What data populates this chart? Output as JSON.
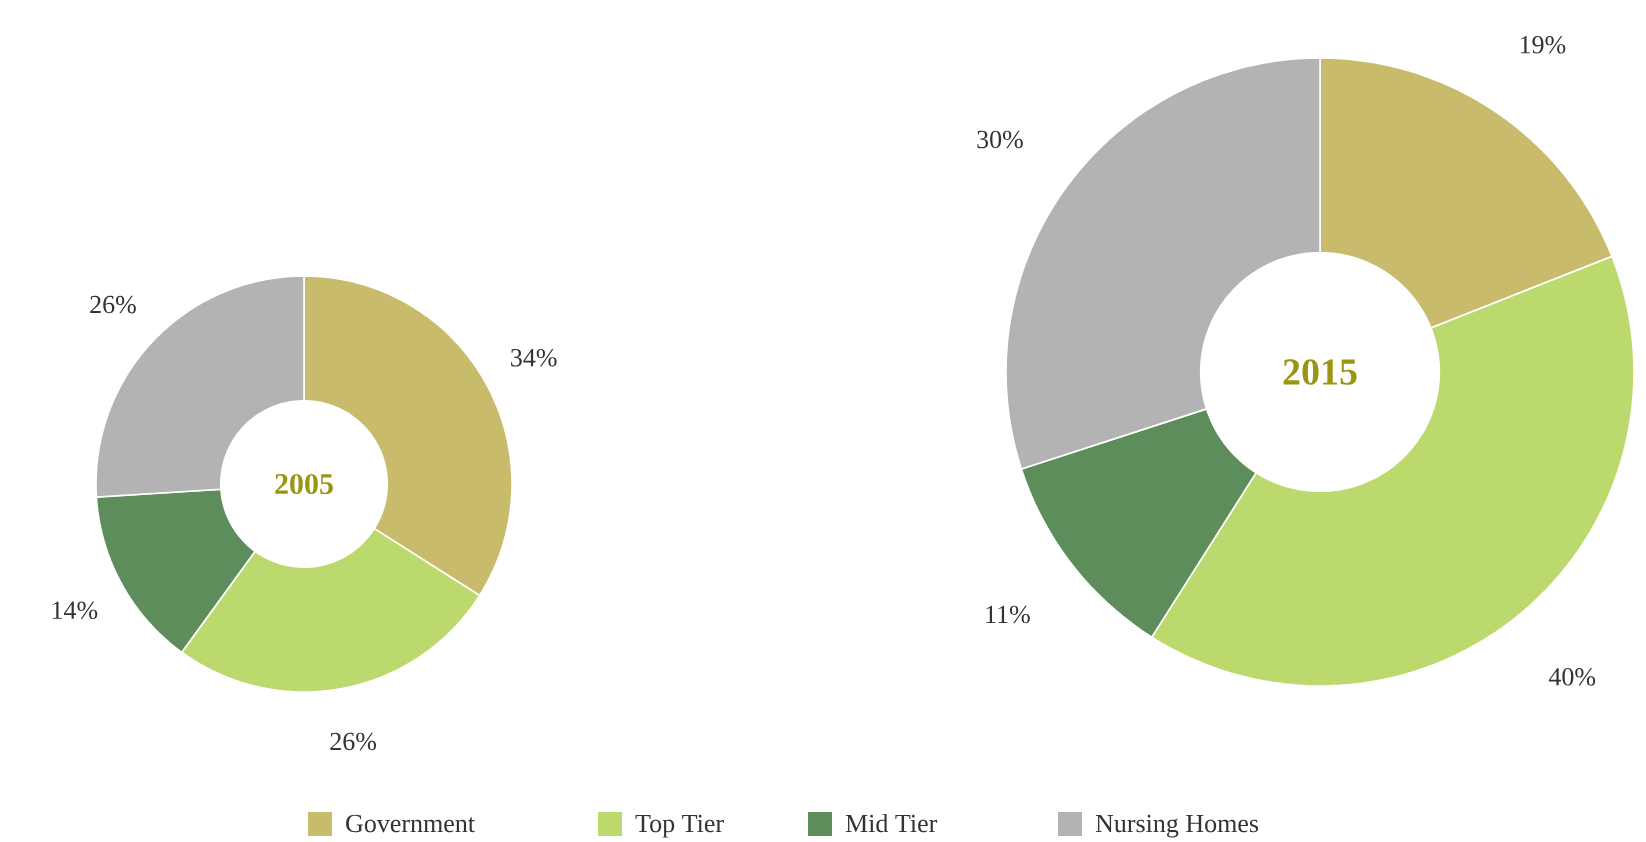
{
  "chart_data": [
    {
      "type": "donut",
      "title": "2005",
      "values": [
        34,
        26,
        14,
        26
      ],
      "colors": [
        "#c9bb6c",
        "#bcd96e",
        "#5e8d5c",
        "#b3b3b3"
      ],
      "value_labels": [
        "34%",
        "26%",
        "14%",
        "26%"
      ]
    },
    {
      "type": "donut",
      "title": "2015",
      "categories": [
        "Government",
        "Top Tier",
        "Mid Tier",
        "Nursing Homes"
      ],
      "values": [
        19,
        40,
        11,
        30
      ],
      "colors": [
        "#c9bb6c",
        "#bcd96e",
        "#5e8d5c",
        "#b3b3b3"
      ],
      "value_labels": [
        "19%",
        "40%",
        "11%",
        "30%"
      ],
      "legend": "bottom"
    }
  ]
}
